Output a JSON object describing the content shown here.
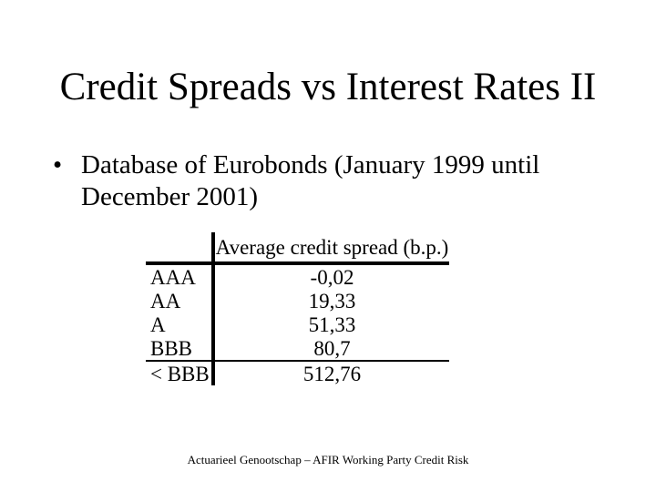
{
  "slide": {
    "title": "Credit Spreads vs Interest Rates II",
    "bullet": {
      "symbol": "•",
      "text": "Database of Eurobonds (January 1999 until December 2001)"
    },
    "table": {
      "header": "Average credit spread (b.p.)",
      "rows": [
        {
          "rating": "AAA",
          "value": "-0,02"
        },
        {
          "rating": "AA",
          "value": "19,33"
        },
        {
          "rating": "A",
          "value": "51,33"
        },
        {
          "rating": "BBB",
          "value": "80,7"
        },
        {
          "rating": "< BBB",
          "value": "512,76"
        }
      ]
    },
    "footer": "Actuarieel Genootschap – AFIR Working Party Credit Risk"
  }
}
